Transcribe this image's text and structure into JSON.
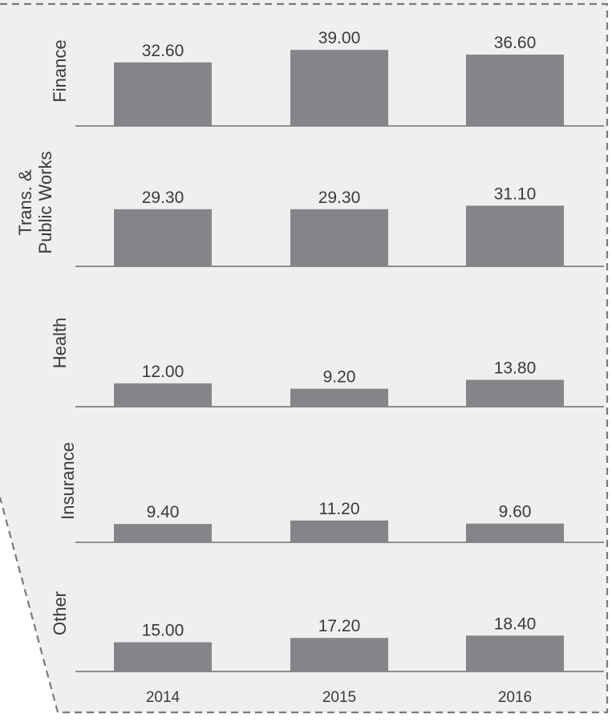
{
  "chart_data": {
    "type": "bar",
    "categories": [
      "2014",
      "2015",
      "2016"
    ],
    "panels": [
      {
        "label": "Finance",
        "values": [
          32.6,
          39.0,
          36.6
        ],
        "value_labels": [
          "32.60",
          "39.00",
          "36.60"
        ]
      },
      {
        "label": "Trans. & Public Works",
        "label_lines": [
          "Trans. &",
          "Public Works"
        ],
        "values": [
          29.3,
          29.3,
          31.1
        ],
        "value_labels": [
          "29.30",
          "29.30",
          "31.10"
        ]
      },
      {
        "label": "Health",
        "values": [
          12.0,
          9.2,
          13.8
        ],
        "value_labels": [
          "12.00",
          "9.20",
          "13.80"
        ]
      },
      {
        "label": "Insurance",
        "values": [
          9.4,
          11.2,
          9.6
        ],
        "value_labels": [
          "9.40",
          "11.20",
          "9.60"
        ]
      },
      {
        "label": "Other",
        "values": [
          15.0,
          17.2,
          18.4
        ],
        "value_labels": [
          "15.00",
          "17.20",
          "18.40"
        ]
      }
    ],
    "grid": false,
    "legend": "none"
  },
  "colors": {
    "bar": "#858488",
    "panel_fill": "#efefef",
    "border": "#7a7a7a",
    "text": "#3a3a3a"
  }
}
